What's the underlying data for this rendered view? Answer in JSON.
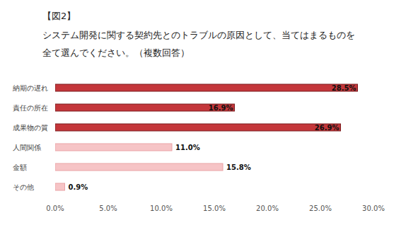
{
  "chart_data": {
    "type": "bar",
    "orientation": "horizontal",
    "title": "【図2】",
    "subtitle": [
      "システム開発に関する契約先とのトラブルの原因として、当てはまるものを",
      "全て選んでください。（複数回答）"
    ],
    "categories": [
      "納期の遅れ",
      "責任の所在",
      "成果物の質",
      "人間関係",
      "金額",
      "その他"
    ],
    "values": [
      28.5,
      16.9,
      26.9,
      11.0,
      15.8,
      0.9
    ],
    "value_labels": [
      "28.5%",
      "16.9%",
      "26.9%",
      "11.0%",
      "15.8%",
      "0.9%"
    ],
    "colors": [
      "#c4363a",
      "#c4363a",
      "#c4363a",
      "#f6c4c6",
      "#f6c4c6",
      "#f6c4c6"
    ],
    "xlim": [
      0,
      30
    ],
    "xticks": [
      {
        "value": 0,
        "label": "0.0%"
      },
      {
        "value": 5,
        "label": "5.0%"
      },
      {
        "value": 10,
        "label": "10.0%"
      },
      {
        "value": 15,
        "label": "15.0%"
      },
      {
        "value": 20,
        "label": "20.0%"
      },
      {
        "value": 25,
        "label": "25.0%"
      },
      {
        "value": 30,
        "label": "30.0%"
      }
    ],
    "grid": false,
    "data_labels": true
  }
}
